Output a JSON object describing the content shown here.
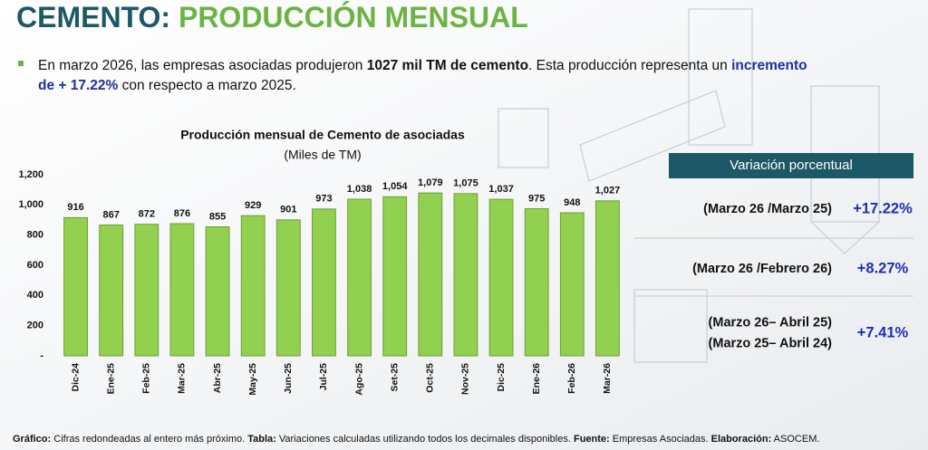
{
  "header": {
    "title": [
      "CEMENTO:",
      "PRODUCCIÓN MENSUAL"
    ]
  },
  "intro": [
    [
      "En marzo 2026, las empresas asociadas produjeron ",
      "1027 mil TM de cemento",
      ". Esta producción representa un ",
      "incremento"
    ],
    [
      "de + 17.22%",
      " con respecto a marzo 2025."
    ]
  ],
  "chart_data": {
    "type": "bar",
    "title": "Producción mensual de Cemento de asociadas",
    "subtitle": "(Miles de TM)",
    "categories": [
      "Dic-24",
      "Ene-25",
      "Feb-25",
      "Mar-25",
      "Abr-25",
      "May-25",
      "Jun-25",
      "Jul-25",
      "Ago-25",
      "Set-25",
      "Oct-25",
      "Nov-25",
      "Dic-25",
      "Ene-26",
      "Feb-26",
      "Mar-26"
    ],
    "values": [
      916,
      867,
      872,
      876,
      855,
      929,
      901,
      973,
      1038,
      1054,
      1079,
      1075,
      1037,
      975,
      948,
      1027
    ],
    "value_labels": [
      "916",
      "867",
      "872",
      "876",
      "855",
      "929",
      "901",
      "973",
      "1,038",
      "1,054",
      "1,079",
      "1,075",
      "1,037",
      "975",
      "948",
      "1,027"
    ],
    "color": "#92d050",
    "ylim": [
      0,
      1200
    ],
    "yticks": [
      {
        "value": 0,
        "label": "-"
      },
      200,
      400,
      600,
      800,
      {
        "value": 1000,
        "label": "1,000"
      },
      {
        "value": 1200,
        "label": "1,200"
      }
    ],
    "grid": false
  },
  "table": {
    "header": "Variación porcentual",
    "rows": [
      [
        [
          "(Marzo 26 /Marzo 25)"
        ],
        "+17.22%"
      ],
      [
        [
          "(Marzo 26 /Febrero 26)"
        ],
        "+8.27%"
      ],
      [
        [
          "(Marzo 26– Abril 25)",
          "(Marzo 25– Abril 24)"
        ],
        "+7.41%"
      ]
    ]
  },
  "footer": [
    "Gráfico:",
    " Cifras redondeadas al entero más próximo. ",
    "Tabla:",
    " Variaciones calculadas utilizando todos los decimales disponibles. ",
    "Fuente:",
    " Empresas Asociadas. ",
    "Elaboración:",
    " ASOCEM."
  ]
}
